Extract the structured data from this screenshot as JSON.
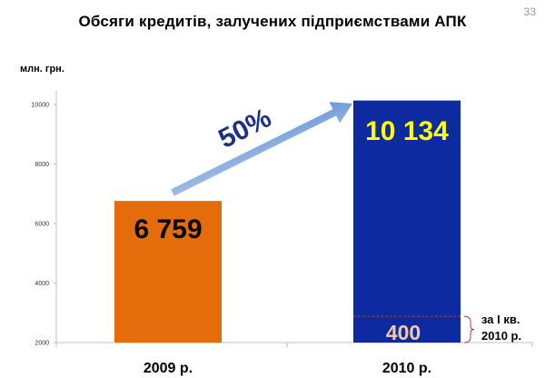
{
  "slide_number": "33",
  "chart_data": {
    "type": "bar",
    "title": "Обсяги кредитів, залучених підприємствами АПК",
    "unit_label": "млн. грн.",
    "categories": [
      "2009 р.",
      "2010 р."
    ],
    "values": [
      6759,
      10134
    ],
    "value_labels": [
      "6 759",
      "10 134"
    ],
    "bar_colors": [
      "#e46c0a",
      "#0d2aa1"
    ],
    "value_label_colors": [
      "#000000",
      "#ffff00"
    ],
    "ylim": [
      2000,
      10000
    ],
    "yticks": [
      2000,
      4000,
      6000,
      8000,
      10000
    ],
    "grid": false,
    "growth_label": "50%",
    "sub_value": 400,
    "sub_value_label": "400",
    "sub_note_line1": "за І кв.",
    "sub_note_line2": "2010 р."
  }
}
